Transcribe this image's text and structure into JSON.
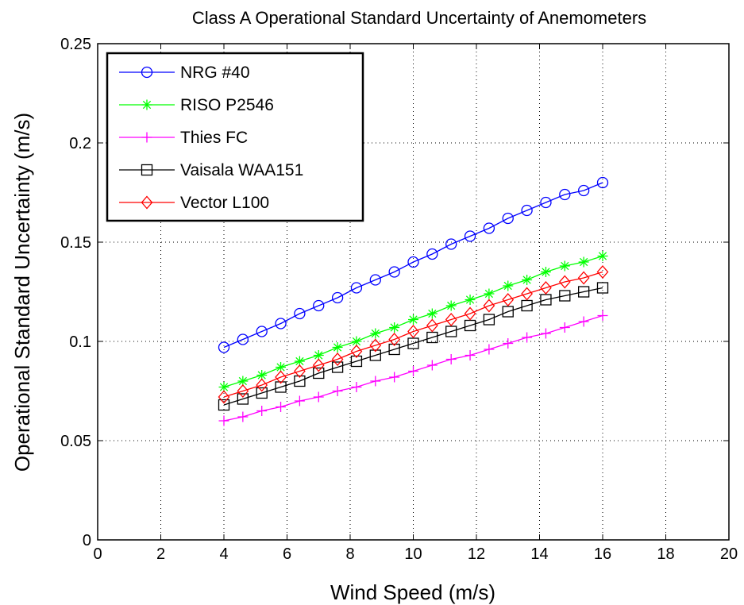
{
  "chart_data": {
    "type": "line",
    "title": "Class A Operational Standard Uncertainty of Anemometers",
    "xlabel": "Wind Speed (m/s)",
    "ylabel": "Operational Standard Uncertainty (m/s)",
    "xlim": [
      0,
      20
    ],
    "ylim": [
      0,
      0.25
    ],
    "xticks": [
      0,
      2,
      4,
      6,
      8,
      10,
      12,
      14,
      16,
      18,
      20
    ],
    "xtick_labels": [
      "0",
      "2",
      "4",
      "6",
      "8",
      "10",
      "12",
      "14",
      "16",
      "18",
      "20"
    ],
    "yticks": [
      0,
      0.05,
      0.1,
      0.15,
      0.2,
      0.25
    ],
    "ytick_labels": [
      "0",
      "0.05",
      "0.1",
      "0.15",
      "0.2",
      "0.25"
    ],
    "grid": true,
    "legend_position": "top-left",
    "x": [
      4.0,
      4.6,
      5.2,
      5.8,
      6.4,
      7.0,
      7.6,
      8.2,
      8.8,
      9.4,
      10.0,
      10.6,
      11.2,
      11.8,
      12.4,
      13.0,
      13.6,
      14.2,
      14.8,
      15.4,
      16.0
    ],
    "series": [
      {
        "name": "NRG #40",
        "color": "#0000ff",
        "marker": "circle",
        "values": [
          0.097,
          0.101,
          0.105,
          0.109,
          0.114,
          0.118,
          0.122,
          0.127,
          0.131,
          0.135,
          0.14,
          0.144,
          0.149,
          0.153,
          0.157,
          0.162,
          0.166,
          0.17,
          0.174,
          0.176,
          0.18
        ]
      },
      {
        "name": "RISO P2546",
        "color": "#00ff00",
        "marker": "star",
        "values": [
          0.077,
          0.08,
          0.083,
          0.087,
          0.09,
          0.093,
          0.097,
          0.1,
          0.104,
          0.107,
          0.111,
          0.114,
          0.118,
          0.121,
          0.124,
          0.128,
          0.131,
          0.135,
          0.138,
          0.14,
          0.143
        ]
      },
      {
        "name": "Thies FC",
        "color": "#ff00ff",
        "marker": "plus",
        "values": [
          0.06,
          0.062,
          0.065,
          0.067,
          0.07,
          0.072,
          0.075,
          0.077,
          0.08,
          0.082,
          0.085,
          0.088,
          0.091,
          0.093,
          0.096,
          0.099,
          0.102,
          0.104,
          0.107,
          0.11,
          0.113
        ]
      },
      {
        "name": "Vaisala WAA151",
        "color": "#000000",
        "marker": "square",
        "values": [
          0.068,
          0.071,
          0.074,
          0.077,
          0.08,
          0.084,
          0.087,
          0.09,
          0.093,
          0.096,
          0.099,
          0.102,
          0.105,
          0.108,
          0.111,
          0.115,
          0.118,
          0.121,
          0.123,
          0.125,
          0.127
        ]
      },
      {
        "name": "Vector L100",
        "color": "#ff0000",
        "marker": "diamond",
        "values": [
          0.072,
          0.075,
          0.078,
          0.082,
          0.085,
          0.088,
          0.091,
          0.095,
          0.098,
          0.101,
          0.105,
          0.108,
          0.111,
          0.114,
          0.118,
          0.121,
          0.124,
          0.127,
          0.13,
          0.132,
          0.135
        ]
      }
    ]
  }
}
